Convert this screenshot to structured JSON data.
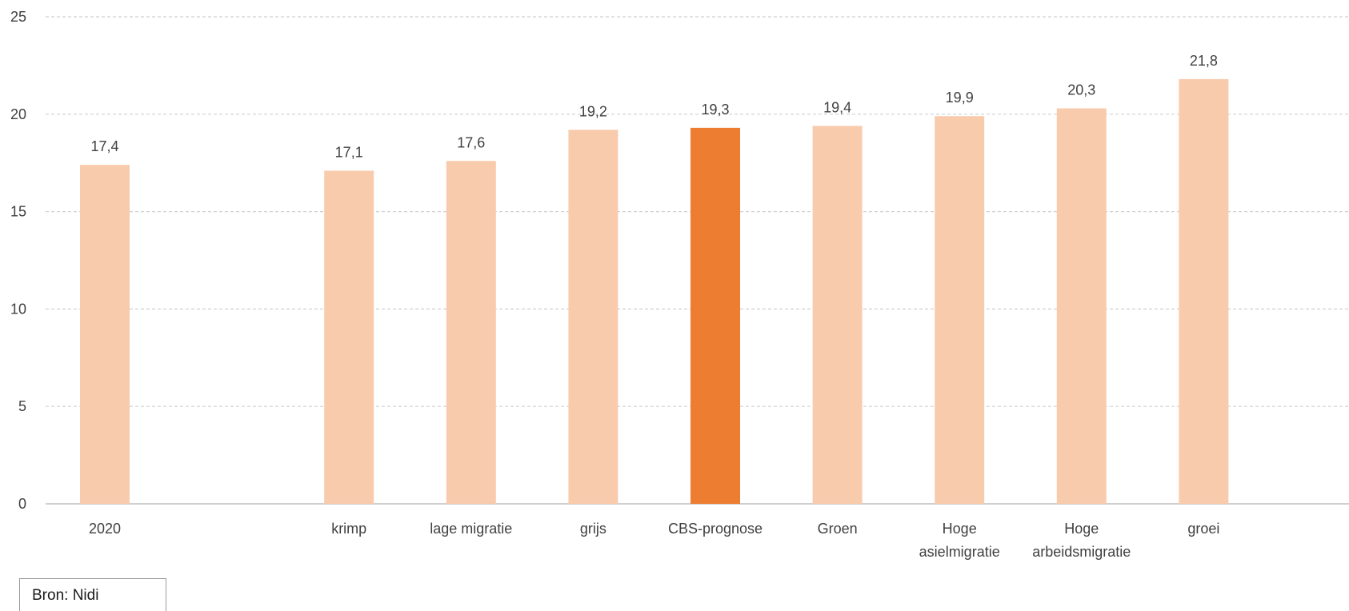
{
  "chart_data": {
    "type": "bar",
    "title": "",
    "xlabel": "",
    "ylabel": "",
    "ylim": [
      0,
      25
    ],
    "yticks": [
      0,
      5,
      10,
      15,
      20,
      25
    ],
    "grid": true,
    "categories": [
      [
        "2020"
      ],
      [],
      [
        "krimp"
      ],
      [
        "lage migratie"
      ],
      [
        "grijs"
      ],
      [
        "CBS-prognose"
      ],
      [
        "Groen"
      ],
      [
        "Hoge",
        "asielmigratie"
      ],
      [
        "Hoge",
        "arbeidsmigratie"
      ],
      [
        "groei"
      ]
    ],
    "values": [
      17.4,
      null,
      17.1,
      17.6,
      19.2,
      19.3,
      19.4,
      19.9,
      20.3,
      21.8
    ],
    "value_labels": [
      "17,4",
      "",
      "17,1",
      "17,6",
      "19,2",
      "19,3",
      "19,4",
      "19,9",
      "20,3",
      "21,8"
    ],
    "highlight_index": 5,
    "colors": {
      "bar": "#f8cbad",
      "highlight": "#ed7d31",
      "grid": "#d0d0d0",
      "axis": "#bfbfbf"
    }
  },
  "source": {
    "label": "Bron: Nidi"
  }
}
